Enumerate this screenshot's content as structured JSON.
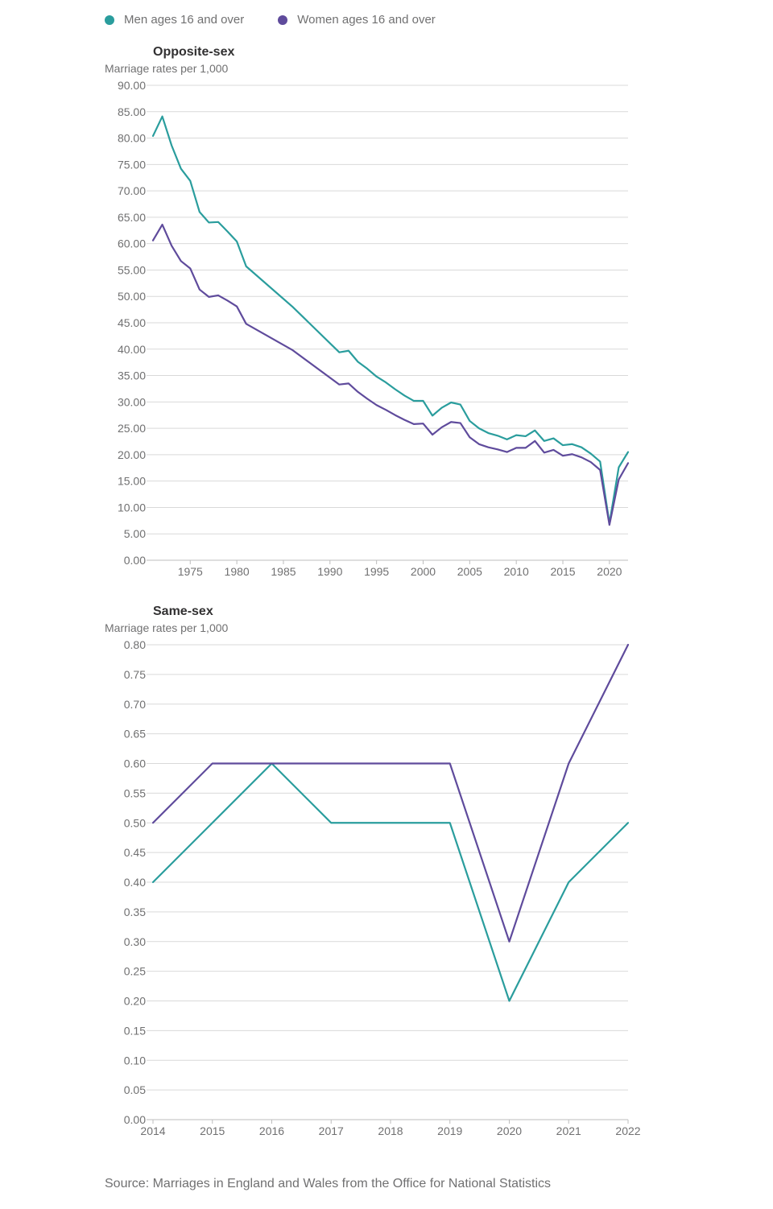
{
  "legend": {
    "men_label": "Men ages 16 and over",
    "women_label": "Women ages 16 and over"
  },
  "colors": {
    "men": "#2a9d9d",
    "women": "#5f4b9c",
    "grid": "#d9d9d9",
    "tick_text": "#707071"
  },
  "source": "Source: Marriages in England and Wales from the Office for National Statistics",
  "chart_data": [
    {
      "type": "line",
      "title": "Opposite-sex",
      "ylabel": "Marriage rates per 1,000",
      "xlabel": "",
      "ylim": [
        0,
        90
      ],
      "yticks": [
        "0.00",
        "5.00",
        "10.00",
        "15.00",
        "20.00",
        "25.00",
        "30.00",
        "35.00",
        "40.00",
        "45.00",
        "50.00",
        "55.00",
        "60.00",
        "65.00",
        "70.00",
        "75.00",
        "80.00",
        "85.00",
        "90.00"
      ],
      "xlim": [
        1971,
        2022
      ],
      "xticks": [
        "1975",
        "1980",
        "1985",
        "1990",
        "1995",
        "2000",
        "2005",
        "2010",
        "2015",
        "2020"
      ],
      "grid": true,
      "x": [
        1971,
        1972,
        1973,
        1974,
        1975,
        1976,
        1977,
        1978,
        1979,
        1980,
        1981,
        1986,
        1991,
        1992,
        1993,
        1994,
        1995,
        1996,
        1997,
        1998,
        1999,
        2000,
        2001,
        2002,
        2003,
        2004,
        2005,
        2006,
        2007,
        2008,
        2009,
        2010,
        2011,
        2012,
        2013,
        2014,
        2015,
        2016,
        2017,
        2018,
        2019,
        2020,
        2021,
        2022
      ],
      "series": [
        {
          "name": "Men ages 16 and over",
          "values": [
            80.4,
            84.1,
            78.6,
            74.2,
            71.9,
            66.0,
            64.0,
            64.1,
            62.3,
            60.4,
            55.7,
            48.0,
            39.4,
            39.7,
            37.6,
            36.3,
            34.8,
            33.7,
            32.4,
            31.2,
            30.2,
            30.2,
            27.4,
            28.9,
            29.9,
            29.5,
            26.4,
            25.0,
            24.1,
            23.6,
            22.9,
            23.7,
            23.5,
            24.6,
            22.6,
            23.1,
            21.8,
            22.0,
            21.4,
            20.2,
            18.7,
            7.0,
            17.6,
            20.5
          ]
        },
        {
          "name": "Women ages 16 and over",
          "values": [
            60.6,
            63.6,
            59.6,
            56.7,
            55.3,
            51.3,
            49.9,
            50.2,
            49.2,
            48.1,
            44.8,
            39.8,
            33.3,
            33.5,
            31.9,
            30.6,
            29.4,
            28.5,
            27.5,
            26.6,
            25.8,
            25.9,
            23.8,
            25.2,
            26.2,
            26.0,
            23.3,
            22.0,
            21.4,
            21.0,
            20.5,
            21.3,
            21.3,
            22.6,
            20.4,
            20.9,
            19.8,
            20.1,
            19.5,
            18.6,
            17.1,
            6.7,
            15.3,
            18.4
          ]
        }
      ]
    },
    {
      "type": "line",
      "title": "Same-sex",
      "ylabel": "Marriage rates per 1,000",
      "xlabel": "",
      "ylim": [
        0,
        0.8
      ],
      "yticks": [
        "0.00",
        "0.05",
        "0.10",
        "0.15",
        "0.20",
        "0.25",
        "0.30",
        "0.35",
        "0.40",
        "0.45",
        "0.50",
        "0.55",
        "0.60",
        "0.65",
        "0.70",
        "0.75",
        "0.80"
      ],
      "xlim": [
        2014,
        2022
      ],
      "xticks": [
        "2014",
        "2015",
        "2016",
        "2017",
        "2018",
        "2019",
        "2020",
        "2021",
        "2022"
      ],
      "grid": true,
      "x": [
        2014,
        2015,
        2016,
        2017,
        2018,
        2019,
        2020,
        2021,
        2022
      ],
      "series": [
        {
          "name": "Men ages 16 and over",
          "values": [
            0.4,
            0.5,
            0.6,
            0.5,
            0.5,
            0.5,
            0.2,
            0.4,
            0.5
          ]
        },
        {
          "name": "Women ages 16 and over",
          "values": [
            0.5,
            0.6,
            0.6,
            0.6,
            0.6,
            0.6,
            0.3,
            0.6,
            0.8
          ]
        }
      ]
    }
  ]
}
